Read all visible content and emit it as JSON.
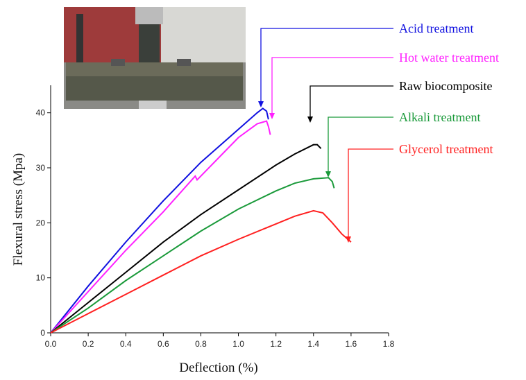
{
  "chart_data": {
    "type": "line",
    "xlabel": "Deflection (%)",
    "ylabel": "Flexural stress (Mpa)",
    "xlim": [
      0,
      1.8
    ],
    "ylim": [
      0,
      45
    ],
    "xticks": [
      {
        "value": 0,
        "label": "0.0"
      },
      0.2,
      0.4,
      0.6,
      0.8,
      {
        "value": 1,
        "label": "1.0"
      },
      1.2,
      1.4,
      1.6,
      1.8
    ],
    "yticks": [
      0,
      10,
      20,
      30,
      40
    ],
    "series": [
      {
        "name": "Acid treatment",
        "color": "#1010e0",
        "x": [
          0,
          0.2,
          0.4,
          0.6,
          0.8,
          1.0,
          1.1,
          1.13,
          1.15,
          1.16
        ],
        "values": [
          0,
          8.5,
          16.5,
          24,
          31,
          37,
          40,
          40.8,
          40.3,
          38.8
        ]
      },
      {
        "name": "Hot water treatment",
        "color": "#ff20ff",
        "x": [
          0,
          0.2,
          0.4,
          0.6,
          0.77,
          0.78,
          0.9,
          1.0,
          1.1,
          1.15,
          1.16,
          1.17
        ],
        "values": [
          0,
          7.5,
          15,
          22,
          28.5,
          27.8,
          32,
          35.5,
          38,
          38.5,
          37.5,
          36
        ]
      },
      {
        "name": "Raw biocomposite",
        "color": "#000000",
        "x": [
          0,
          0.2,
          0.4,
          0.6,
          0.8,
          1.0,
          1.2,
          1.3,
          1.4,
          1.42,
          1.44
        ],
        "values": [
          0,
          5.5,
          11,
          16.5,
          21.5,
          26,
          30.5,
          32.5,
          34.2,
          34.2,
          33.5
        ]
      },
      {
        "name": "Alkali treatment",
        "color": "#1a9a3a",
        "x": [
          0,
          0.2,
          0.4,
          0.6,
          0.8,
          1.0,
          1.2,
          1.3,
          1.4,
          1.48,
          1.5,
          1.51
        ],
        "values": [
          0,
          4.5,
          9.5,
          14,
          18.5,
          22.5,
          25.8,
          27.2,
          28,
          28.2,
          27.5,
          26.3
        ]
      },
      {
        "name": "Glycerol treatment",
        "color": "#ff2020",
        "x": [
          0,
          0.2,
          0.4,
          0.6,
          0.8,
          1.0,
          1.2,
          1.3,
          1.4,
          1.45,
          1.5,
          1.55,
          1.6
        ],
        "values": [
          0,
          3.5,
          7,
          10.5,
          14,
          17,
          19.8,
          21.2,
          22.2,
          21.8,
          20,
          18,
          16.5
        ]
      }
    ]
  }
}
